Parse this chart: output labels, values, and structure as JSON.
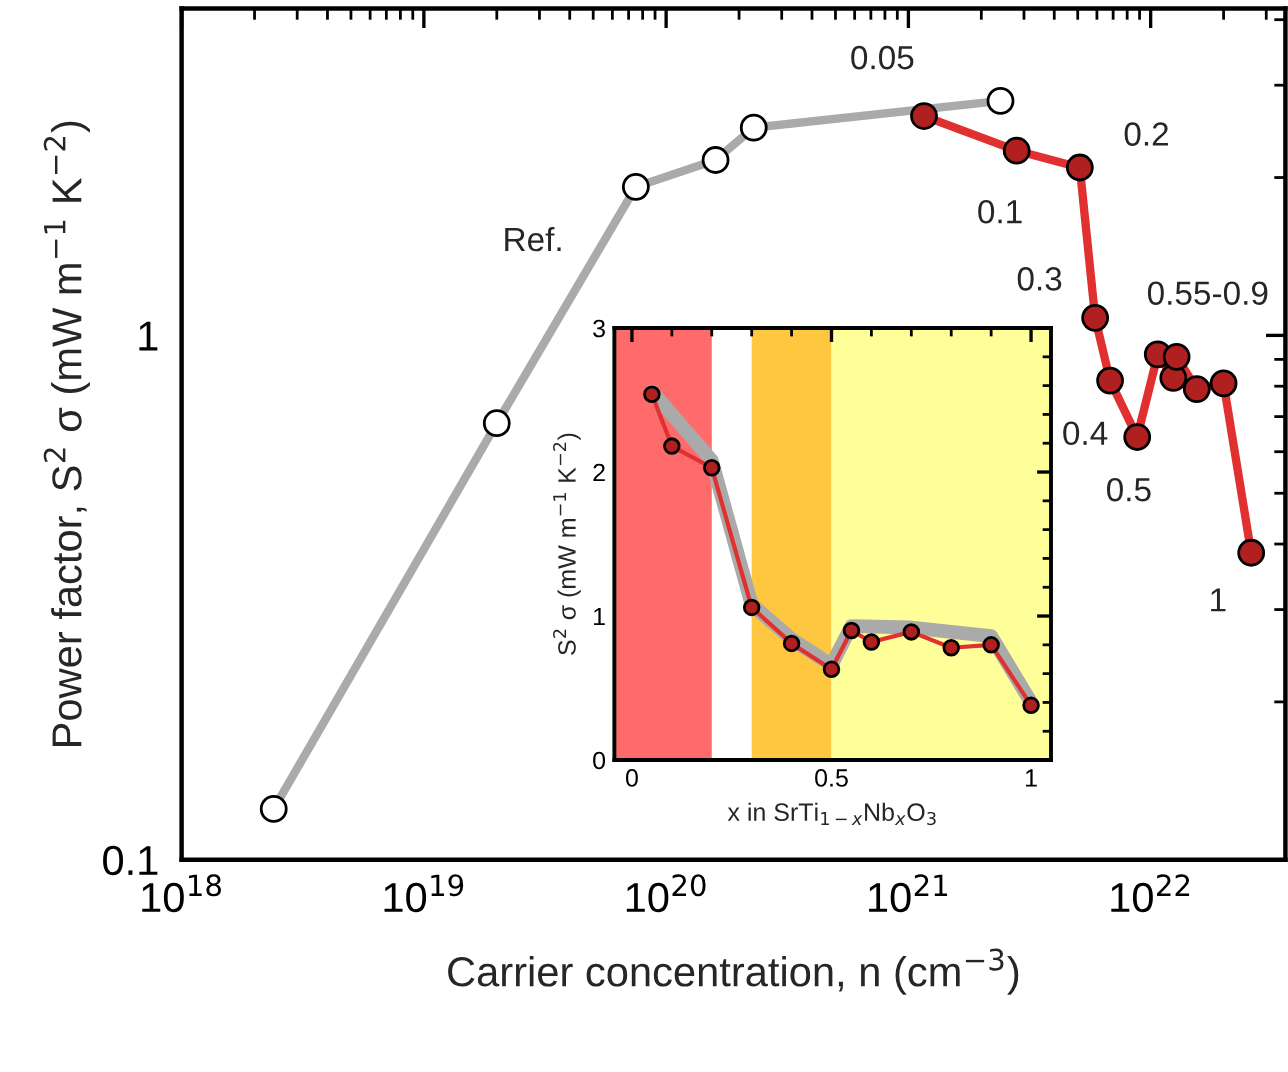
{
  "chart_data": [
    {
      "type": "line",
      "xlabel": "Carrier concentration, n (cm$^{−3}$)",
      "ylabel": "Power factor, S$^{2}$ σ (mW m$^{−1}$ K$^{−2}$)",
      "log": "xy",
      "marker": "circle",
      "line_style": "solid",
      "grid": false,
      "legend": false,
      "xlim": [
        1e+18,
        3.6e+22
      ],
      "ylim": [
        0.1,
        4.2
      ],
      "xticks": [
        {
          "value": 1e+18,
          "label": "10$^{18}$"
        },
        {
          "value": 1e+19,
          "label": "10$^{19}$"
        },
        {
          "value": 1e+20,
          "label": "10$^{20}$"
        },
        {
          "value": 1e+21,
          "label": "10$^{21}$"
        },
        {
          "value": 1e+22,
          "label": "10$^{22}$"
        }
      ],
      "yticks": [
        0.1,
        1
      ],
      "series": [
        {
          "color": "#aaaaaa",
          "x": [
            2.4e+18,
            2e+19,
            7.5e+19,
            1.6e+20,
            2.3e+20,
            2.4e+21
          ],
          "values": [
            0.125,
            0.68,
            1.92,
            2.16,
            2.49,
            2.8
          ],
          "colors": [
            "#ffffff",
            "#ffffff",
            "#ffffff",
            "#ffffff",
            "#ffffff",
            "#ffffff"
          ]
        },
        {
          "color": "#e03030",
          "x": [
            1.16e+21,
            2.8e+21,
            5.1e+21,
            5.9e+21,
            6.8e+21,
            8.8e+21,
            1.07e+22,
            1.24e+22,
            1.28e+22,
            1.55e+22,
            2e+22,
            2.6e+22
          ],
          "values": [
            2.62,
            2.25,
            2.09,
            1.08,
            0.82,
            0.64,
            0.92,
            0.83,
            0.91,
            0.79,
            0.81,
            0.385
          ],
          "colors": [
            "#b02020",
            "#b02020",
            "#b02020",
            "#b02020",
            "#b02020",
            "#b02020",
            "#b02020",
            "#b02020",
            "#b02020",
            "#b02020",
            "#b02020",
            "#b02020"
          ]
        }
      ],
      "annotations": [
        {
          "text": "Ref.",
          "x": 7.5e+19,
          "y": 1.92
        },
        {
          "text": "0.05",
          "x": 1.16e+21,
          "y": 2.62
        },
        {
          "text": "0.1",
          "x": 2.8e+21,
          "y": 2.25
        },
        {
          "text": "0.2",
          "x": 5.1e+21,
          "y": 2.09
        },
        {
          "text": "0.3",
          "x": 5.9e+21,
          "y": 1.08
        },
        {
          "text": "0.4",
          "x": 6.8e+21,
          "y": 0.82
        },
        {
          "text": "0.5",
          "x": 8.8e+21,
          "y": 0.64
        },
        {
          "text": "0.55-0.9",
          "x": 1.07e+22,
          "y": 0.92
        },
        {
          "text": "1",
          "x": 2.6e+22,
          "y": 0.385
        }
      ]
    },
    {
      "type": "line",
      "xlabel": "x in SrTi$_{1−x}$Nb$_{x}$O$_{3}$",
      "ylabel": "S$^{2}$ σ (mW m$^{−1}$ K$^{−2}$)",
      "grid": false,
      "legend": false,
      "xlim": [
        -0.044,
        1.05
      ],
      "ylim": [
        0,
        3
      ],
      "xticks": [
        0,
        0.5,
        1
      ],
      "yticks": [
        0,
        1,
        2,
        3
      ],
      "bands": [
        {
          "axis": "x",
          "from": -0.044,
          "to": 0.2,
          "color": "#ff6a6a"
        },
        {
          "axis": "x",
          "from": 0.3,
          "to": 0.5,
          "color": "#ffc640"
        },
        {
          "axis": "x",
          "from": 0.5,
          "to": 1.05,
          "color": "#ffff9a"
        }
      ],
      "series": [
        {
          "color": "#aaaaaa",
          "marker": "none",
          "x": [
            0.05,
            0.2,
            0.3,
            0.4,
            0.5,
            0.55,
            0.7,
            0.9,
            1
          ],
          "values": [
            2.56,
            2.08,
            1.08,
            0.84,
            0.66,
            0.93,
            0.92,
            0.86,
            0.4
          ]
        },
        {
          "color": "#e03030",
          "marker": "circle",
          "x": [
            0.05,
            0.1,
            0.2,
            0.3,
            0.4,
            0.5,
            0.55,
            0.6,
            0.7,
            0.8,
            0.9,
            1
          ],
          "values": [
            2.54,
            2.18,
            2.03,
            1.06,
            0.81,
            0.63,
            0.9,
            0.82,
            0.89,
            0.78,
            0.8,
            0.38
          ],
          "colors": [
            "#b02020",
            "#b02020",
            "#b02020",
            "#b02020",
            "#b02020",
            "#b02020",
            "#b02020",
            "#b02020",
            "#b02020",
            "#b02020",
            "#b02020",
            "#b02020"
          ]
        }
      ]
    }
  ]
}
